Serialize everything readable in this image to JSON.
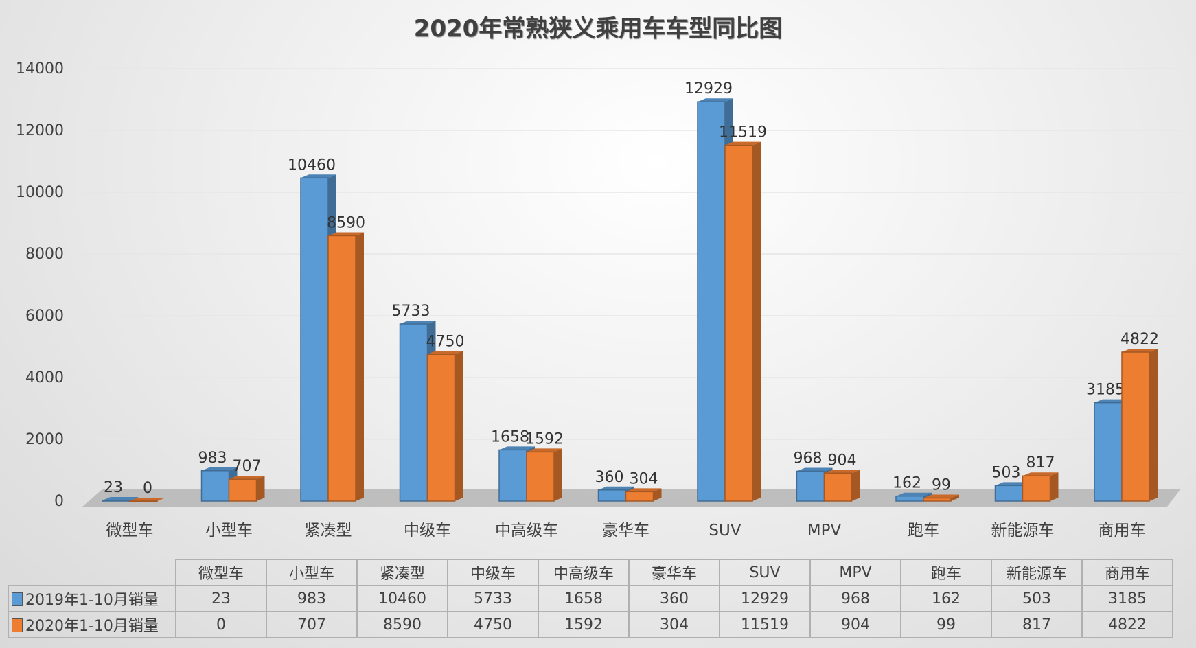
{
  "chart_data": {
    "type": "bar",
    "title": "2020年常熟狭义乘用车车型同比图",
    "categories": [
      "微型车",
      "小型车",
      "紧凑型",
      "中级车",
      "中高级车",
      "豪华车",
      "SUV",
      "MPV",
      "跑车",
      "新能源车",
      "商用车"
    ],
    "series": [
      {
        "name": "2019年1-10月销量",
        "color": "#5b9bd5",
        "values": [
          23,
          983,
          10460,
          5733,
          1658,
          360,
          12929,
          968,
          162,
          503,
          3185
        ]
      },
      {
        "name": "2020年1-10月销量",
        "color": "#ed7d31",
        "values": [
          0,
          707,
          8590,
          4750,
          1592,
          304,
          11519,
          904,
          99,
          817,
          4822
        ]
      }
    ],
    "yticks": [
      "0",
      "2000",
      "4000",
      "6000",
      "8000",
      "10000",
      "12000",
      "14000"
    ],
    "ylim": [
      0,
      14000
    ],
    "grid": true,
    "legend": "data table",
    "style": "3d-clustered-column"
  }
}
